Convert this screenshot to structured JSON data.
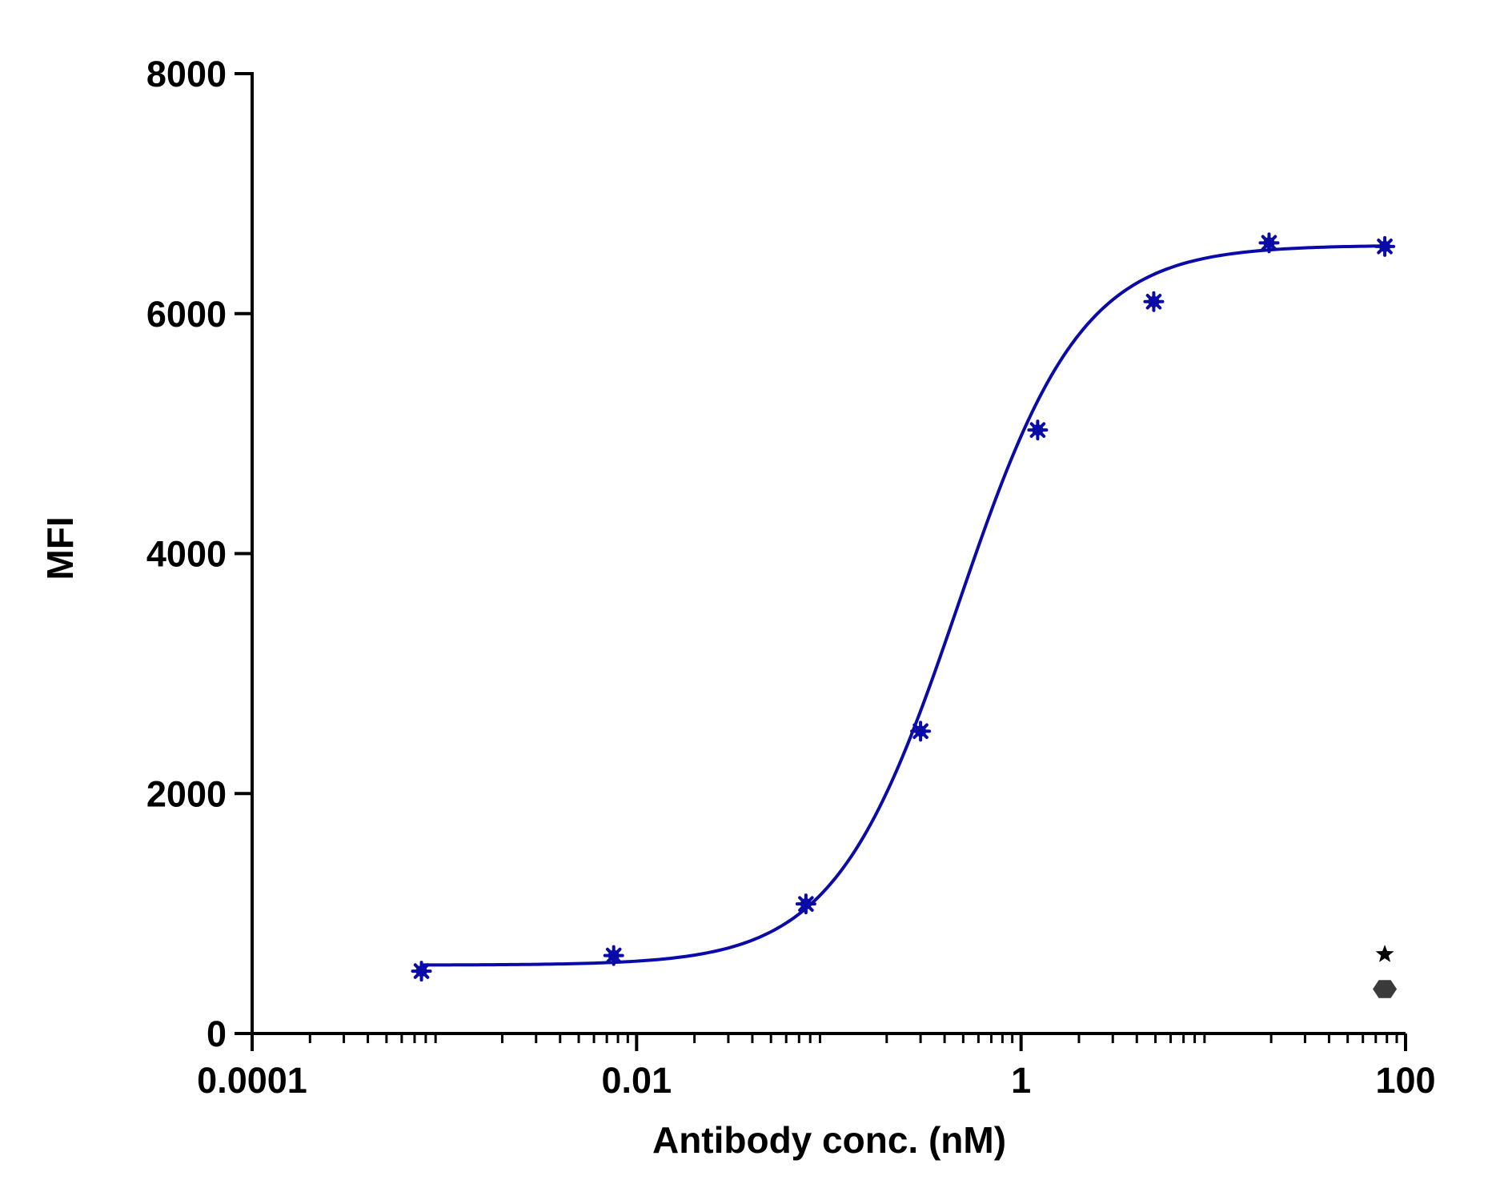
{
  "chart_data": {
    "type": "scatter",
    "xlabel": "Antibody conc. (nM)",
    "ylabel": "MFI",
    "xscale": "log",
    "xlim": [
      0.0001,
      100
    ],
    "ylim": [
      0,
      8000
    ],
    "x_ticks": [
      {
        "value": 0.0001,
        "label": "0.0001"
      },
      {
        "value": 0.01,
        "label": "0.01"
      },
      {
        "value": 1,
        "label": "1"
      },
      {
        "value": 100,
        "label": "100"
      }
    ],
    "y_ticks": [
      {
        "value": 0,
        "label": "0"
      },
      {
        "value": 2000,
        "label": "2000"
      },
      {
        "value": 4000,
        "label": "4000"
      },
      {
        "value": 6000,
        "label": "6000"
      },
      {
        "value": 8000,
        "label": "8000"
      }
    ],
    "grid": false,
    "legend": "none",
    "series": [
      {
        "color": "#0a0aa8",
        "marker": "asterisk",
        "points": [
          {
            "x": 0.00076,
            "y": 520
          },
          {
            "x": 0.0076,
            "y": 650
          },
          {
            "x": 0.076,
            "y": 1080
          },
          {
            "x": 0.3,
            "y": 2520
          },
          {
            "x": 1.22,
            "y": 5030
          },
          {
            "x": 4.9,
            "y": 6100
          },
          {
            "x": 19.5,
            "y": 6590
          },
          {
            "x": 78,
            "y": 6560
          }
        ],
        "fit": {
          "model": "4PL",
          "bottom": 570,
          "top": 6570,
          "ec50": 0.47,
          "hill": 1.35
        }
      }
    ],
    "extra_markers": [
      {
        "shape": "star",
        "color": "#000000",
        "x": 78,
        "y": 660
      },
      {
        "shape": "hexagon",
        "color": "#3a3a3a",
        "x": 78,
        "y": 370
      }
    ]
  }
}
